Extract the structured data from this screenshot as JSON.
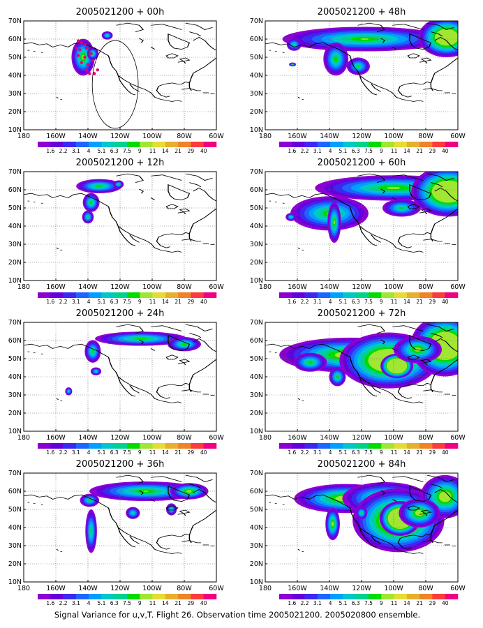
{
  "figure": {
    "caption": "Signal Variance for u,v,T. Flight 26. Observation time 2005021200. 2005020800 ensemble."
  },
  "colors": {
    "scale": [
      "#8c00d2",
      "#6400dc",
      "#3c28f0",
      "#1e64ff",
      "#00a0ff",
      "#00c8c8",
      "#00d28c",
      "#00dc00",
      "#a0e632",
      "#e6dc32",
      "#e6af2d",
      "#f08228",
      "#fa3c3c",
      "#f00082"
    ],
    "observation_points": "#e6006e",
    "coast": "#000000",
    "grid": "#666666"
  },
  "colorbar": {
    "labels": [
      "1.6",
      "2.2",
      "3.1",
      "4",
      "5.1",
      "6.3",
      "7.5",
      "9",
      "11",
      "14",
      "21",
      "29",
      "40"
    ]
  },
  "axes": {
    "lon_ticks": [
      "180",
      "160W",
      "140W",
      "120W",
      "100W",
      "80W",
      "60W"
    ],
    "lat_ticks": [
      "10N",
      "20N",
      "30N",
      "40N",
      "50N",
      "60N",
      "70N"
    ],
    "lon_range": [
      -180,
      -60
    ],
    "lat_range": [
      10,
      70
    ],
    "grid": "dotted"
  },
  "chart_data": [
    {
      "type": "heatmap",
      "title": "2005021200 + 00h",
      "lead_hours": 0,
      "blobs": [
        [
          -143,
          50,
          5,
          7,
          0.45
        ],
        [
          -137,
          52,
          3,
          3,
          0.2
        ],
        [
          -128,
          62,
          3,
          2,
          0.15
        ]
      ],
      "observation_points": [
        [
          -146,
          59
        ],
        [
          -144,
          58
        ],
        [
          -142,
          57
        ],
        [
          -147,
          55
        ],
        [
          -145,
          54
        ],
        [
          -141,
          55
        ],
        [
          -146,
          51
        ],
        [
          -142,
          50
        ],
        [
          -138,
          52
        ],
        [
          -144,
          47
        ],
        [
          -140,
          46
        ],
        [
          -137,
          48
        ],
        [
          -141,
          43
        ],
        [
          -139,
          41
        ],
        [
          -136,
          41
        ],
        [
          -134,
          43
        ]
      ],
      "circle": [
        -123,
        35,
        5.5
      ]
    },
    {
      "type": "heatmap",
      "title": "2005021200 + 12h",
      "lead_hours": 12,
      "blobs": [
        [
          -133,
          62,
          11,
          3,
          0.3
        ],
        [
          -138,
          53,
          4,
          4,
          0.3
        ],
        [
          -140,
          45,
          3,
          3,
          0.2
        ],
        [
          -121,
          63,
          3,
          2,
          0.1
        ]
      ]
    },
    {
      "type": "heatmap",
      "title": "2005021200 + 24h",
      "lead_hours": 24,
      "blobs": [
        [
          -107,
          61,
          22,
          3,
          0.3
        ],
        [
          -137,
          54,
          4,
          5,
          0.25
        ],
        [
          -135,
          43,
          3,
          2,
          0.1
        ],
        [
          -152,
          32,
          2,
          2,
          0.1
        ],
        [
          -80,
          58,
          8,
          3,
          0.3
        ]
      ]
    },
    {
      "type": "heatmap",
      "title": "2005021200 + 36h",
      "lead_hours": 36,
      "blobs": [
        [
          -104,
          60,
          26,
          4,
          0.35
        ],
        [
          -77,
          60,
          8,
          3,
          0.5
        ],
        [
          -139,
          55,
          5,
          3,
          0.2
        ],
        [
          -138,
          38,
          3,
          10,
          0.2
        ],
        [
          -112,
          48,
          4,
          3,
          0.1
        ],
        [
          -88,
          50,
          3,
          3,
          0.1
        ]
      ]
    },
    {
      "type": "heatmap",
      "title": "2005021200 + 48h",
      "lead_hours": 48,
      "blobs": [
        [
          -118,
          60,
          38,
          5,
          0.35
        ],
        [
          -67,
          61,
          8,
          5,
          1.2
        ],
        [
          -136,
          49,
          6,
          7,
          0.3
        ],
        [
          -122,
          45,
          6,
          4,
          0.2
        ],
        [
          -162,
          57,
          4,
          3,
          0.15
        ],
        [
          -163,
          46,
          2,
          1,
          0.1
        ]
      ]
    },
    {
      "type": "heatmap",
      "title": "2005021200 + 60h",
      "lead_hours": 60,
      "blobs": [
        [
          -100,
          61,
          35,
          5,
          0.4
        ],
        [
          -66,
          59,
          10,
          6,
          1.3
        ],
        [
          -140,
          47,
          18,
          7,
          0.35
        ],
        [
          -137,
          42,
          3,
          8,
          0.4
        ],
        [
          -164,
          45,
          3,
          2,
          0.1
        ],
        [
          -95,
          50,
          10,
          4,
          0.2
        ]
      ]
    },
    {
      "type": "heatmap",
      "title": "2005021200 + 72h",
      "lead_hours": 72,
      "blobs": [
        [
          -128,
          52,
          27,
          6,
          0.6
        ],
        [
          -103,
          49,
          14,
          7,
          1.2
        ],
        [
          -98,
          46,
          3,
          2,
          2.4
        ],
        [
          -68,
          57,
          9,
          7,
          1.4
        ],
        [
          -135,
          40,
          4,
          4,
          0.3
        ],
        [
          -85,
          55,
          10,
          5,
          0.5
        ],
        [
          -152,
          48,
          8,
          4,
          0.3
        ]
      ]
    },
    {
      "type": "heatmap",
      "title": "2005021200 + 84h",
      "lead_hours": 84,
      "blobs": [
        [
          -130,
          56,
          20,
          5,
          0.6
        ],
        [
          -105,
          56,
          18,
          6,
          0.5
        ],
        [
          -97,
          44,
          13,
          8,
          1.2
        ],
        [
          -96,
          45,
          4,
          3,
          2.2
        ],
        [
          -68,
          57,
          9,
          7,
          0.7
        ],
        [
          -138,
          42,
          3,
          6,
          0.5
        ],
        [
          -84,
          48,
          8,
          5,
          0.6
        ],
        [
          -120,
          48,
          3,
          3,
          0.2
        ]
      ]
    }
  ]
}
